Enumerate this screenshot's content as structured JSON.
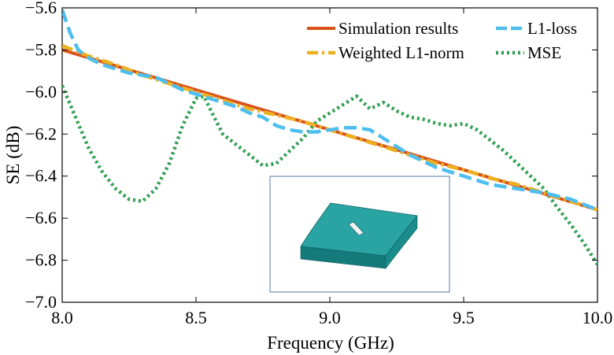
{
  "chart_data": {
    "type": "line",
    "xlabel": "Frequency (GHz)",
    "ylabel": "SE (dB)",
    "xlim": [
      8.0,
      10.0
    ],
    "ylim": [
      -7.0,
      -5.6
    ],
    "xticks": [
      8.0,
      8.5,
      9.0,
      9.5,
      10.0
    ],
    "xtick_labels": [
      "8.0",
      "8.5",
      "9.0",
      "9.5",
      "10.0"
    ],
    "yticks": [
      -7.0,
      -6.8,
      -6.6,
      -6.4,
      -6.2,
      -6.0,
      -5.8,
      -5.6
    ],
    "ytick_labels": [
      "−7.0",
      "−6.8",
      "−6.6",
      "−6.4",
      "−6.2",
      "−6.0",
      "−5.8",
      "−5.6"
    ],
    "grid": false,
    "legend_position": "top-right",
    "series": [
      {
        "name": "Simulation results",
        "color": "#d95319",
        "style": "solid",
        "x": [
          8.0,
          10.0
        ],
        "y": [
          -5.8,
          -6.56
        ]
      },
      {
        "name": "Weighted L1-norm",
        "color": "#edb120",
        "style": "dashdot",
        "x": [
          8.0,
          8.1,
          8.2,
          8.3,
          8.4,
          8.5,
          8.6,
          8.7,
          8.8,
          8.9,
          9.0,
          9.1,
          9.2,
          9.3,
          9.4,
          9.5,
          9.6,
          9.7,
          9.8,
          9.9,
          10.0
        ],
        "y": [
          -5.78,
          -5.83,
          -5.87,
          -5.92,
          -5.96,
          -6.0,
          -6.04,
          -6.08,
          -6.11,
          -6.14,
          -6.18,
          -6.22,
          -6.26,
          -6.3,
          -6.34,
          -6.37,
          -6.41,
          -6.44,
          -6.48,
          -6.52,
          -6.56
        ]
      },
      {
        "name": "L1-loss",
        "color": "#4dbeee",
        "style": "dashed",
        "x": [
          8.0,
          8.03,
          8.06,
          8.1,
          8.15,
          8.2,
          8.25,
          8.3,
          8.35,
          8.4,
          8.45,
          8.5,
          8.55,
          8.6,
          8.65,
          8.7,
          8.75,
          8.8,
          8.85,
          8.9,
          8.95,
          9.0,
          9.05,
          9.1,
          9.15,
          9.2,
          9.25,
          9.3,
          9.4,
          9.5,
          9.6,
          9.7,
          9.8,
          9.9,
          10.0
        ],
        "y": [
          -5.61,
          -5.72,
          -5.8,
          -5.84,
          -5.87,
          -5.89,
          -5.91,
          -5.92,
          -5.93,
          -5.96,
          -5.99,
          -6.01,
          -6.03,
          -6.05,
          -6.07,
          -6.1,
          -6.12,
          -6.16,
          -6.18,
          -6.19,
          -6.19,
          -6.18,
          -6.17,
          -6.17,
          -6.18,
          -6.22,
          -6.26,
          -6.3,
          -6.36,
          -6.4,
          -6.44,
          -6.46,
          -6.48,
          -6.51,
          -6.56
        ]
      },
      {
        "name": "MSE",
        "color": "#2e9e4f",
        "style": "dotted",
        "x": [
          8.0,
          8.05,
          8.1,
          8.15,
          8.2,
          8.25,
          8.3,
          8.35,
          8.4,
          8.45,
          8.5,
          8.53,
          8.56,
          8.6,
          8.65,
          8.7,
          8.75,
          8.8,
          8.85,
          8.9,
          8.95,
          9.0,
          9.05,
          9.1,
          9.15,
          9.2,
          9.25,
          9.3,
          9.35,
          9.4,
          9.45,
          9.5,
          9.55,
          9.6,
          9.65,
          9.7,
          9.75,
          9.8,
          9.85,
          9.9,
          9.95,
          10.0
        ],
        "y": [
          -5.97,
          -6.12,
          -6.27,
          -6.38,
          -6.46,
          -6.51,
          -6.52,
          -6.46,
          -6.34,
          -6.16,
          -6.03,
          -6.02,
          -6.1,
          -6.2,
          -6.25,
          -6.3,
          -6.35,
          -6.34,
          -6.28,
          -6.22,
          -6.14,
          -6.1,
          -6.06,
          -6.02,
          -6.08,
          -6.05,
          -6.09,
          -6.12,
          -6.13,
          -6.15,
          -6.16,
          -6.15,
          -6.18,
          -6.23,
          -6.28,
          -6.34,
          -6.4,
          -6.46,
          -6.55,
          -6.63,
          -6.72,
          -6.82
        ]
      }
    ]
  },
  "inset": {
    "description_icon": "curved-slotted-plate-model",
    "border_color": "#5a79a5",
    "plate_top_color": "#2a9f9f",
    "plate_side_color": "#157a7a"
  }
}
